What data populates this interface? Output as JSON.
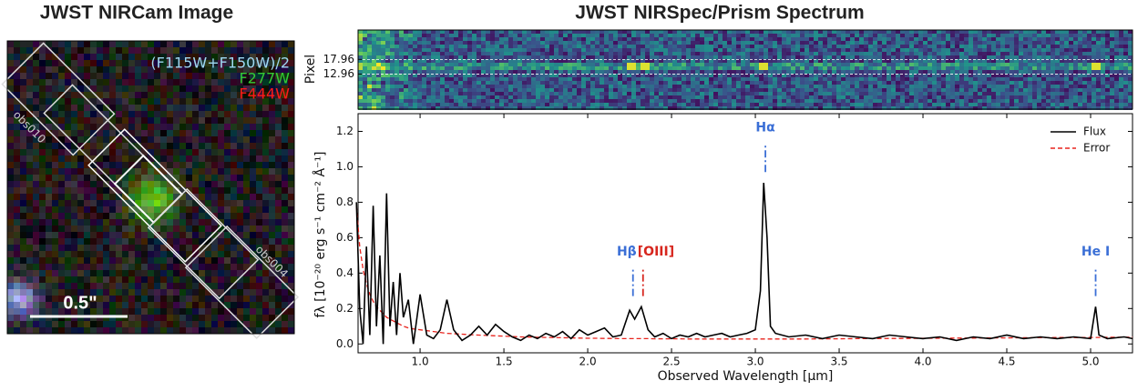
{
  "chart_data": [
    {
      "type": "image",
      "title": "JWST NIRCam Image",
      "bands": [
        {
          "name": "(F115W+F150W)/2",
          "color": "#9fd8f2"
        },
        {
          "name": "F277W",
          "color": "#33cc33"
        },
        {
          "name": "F444W",
          "color": "#ff1a1a"
        }
      ],
      "slit_labels": [
        "obs010",
        "obs004"
      ],
      "scale_bar": "0.5\""
    },
    {
      "type": "line",
      "title": "JWST NIRSpec/Prism Spectrum",
      "inset_ylabel": "Pixel",
      "inset_ylim": [
        1,
        28
      ],
      "inset_yticks": [
        17.96,
        12.96
      ],
      "xlabel": "Observed Wavelength [μm]",
      "ylabel": "fλ [10⁻²⁰ erg s⁻¹ cm⁻² Å⁻¹]",
      "xlim": [
        0.63,
        5.25
      ],
      "ylim": [
        -0.05,
        1.3
      ],
      "xticks": [
        {
          "value": 1,
          "label": "1.0"
        },
        1.5,
        {
          "value": 2,
          "label": "2.0"
        },
        2.5,
        {
          "value": 3,
          "label": "3.0"
        },
        3.5,
        {
          "value": 4,
          "label": "4.0"
        },
        4.5,
        {
          "value": 5,
          "label": "5.0"
        }
      ],
      "yticks": [
        {
          "value": 0,
          "label": "0.0"
        },
        0.2,
        0.4,
        0.6,
        0.8,
        {
          "value": 1,
          "label": "1.0"
        },
        1.2
      ],
      "legend": "upper right",
      "x": [
        0.62,
        0.64,
        0.66,
        0.68,
        0.7,
        0.72,
        0.74,
        0.76,
        0.78,
        0.8,
        0.82,
        0.84,
        0.86,
        0.88,
        0.9,
        0.93,
        0.96,
        1.0,
        1.04,
        1.08,
        1.12,
        1.16,
        1.2,
        1.25,
        1.3,
        1.35,
        1.4,
        1.45,
        1.5,
        1.55,
        1.6,
        1.65,
        1.7,
        1.75,
        1.8,
        1.85,
        1.9,
        1.95,
        2.0,
        2.05,
        2.1,
        2.15,
        2.2,
        2.25,
        2.28,
        2.32,
        2.36,
        2.4,
        2.45,
        2.5,
        2.55,
        2.6,
        2.65,
        2.7,
        2.75,
        2.8,
        2.85,
        2.9,
        2.95,
        3.0,
        3.03,
        3.05,
        3.07,
        3.09,
        3.12,
        3.2,
        3.3,
        3.4,
        3.5,
        3.6,
        3.7,
        3.8,
        3.9,
        4.0,
        4.1,
        4.2,
        4.3,
        4.4,
        4.5,
        4.6,
        4.7,
        4.8,
        4.9,
        5.0,
        5.03,
        5.05,
        5.1,
        5.2,
        5.25
      ],
      "series": [
        {
          "name": "Flux",
          "color": "#000000",
          "style": "solid",
          "values": [
            0.8,
            0.2,
            0.0,
            0.55,
            0.05,
            0.78,
            0.1,
            0.5,
            0.0,
            0.85,
            0.1,
            0.35,
            0.05,
            0.4,
            0.15,
            0.25,
            0.0,
            0.28,
            0.05,
            0.03,
            0.08,
            0.25,
            0.08,
            0.02,
            0.05,
            0.1,
            0.05,
            0.11,
            0.07,
            0.04,
            0.02,
            0.05,
            0.03,
            0.06,
            0.04,
            0.07,
            0.03,
            0.08,
            0.05,
            0.07,
            0.09,
            0.04,
            0.05,
            0.19,
            0.14,
            0.21,
            0.08,
            0.04,
            0.06,
            0.03,
            0.05,
            0.04,
            0.06,
            0.04,
            0.05,
            0.06,
            0.04,
            0.05,
            0.06,
            0.08,
            0.3,
            0.91,
            0.6,
            0.1,
            0.06,
            0.04,
            0.05,
            0.03,
            0.05,
            0.04,
            0.03,
            0.05,
            0.04,
            0.03,
            0.04,
            0.02,
            0.04,
            0.03,
            0.05,
            0.03,
            0.04,
            0.03,
            0.04,
            0.03,
            0.21,
            0.05,
            0.03,
            0.04,
            0.03
          ]
        },
        {
          "name": "Error",
          "color": "#e8231d",
          "style": "dashed",
          "values": [
            0.78,
            0.55,
            0.42,
            0.34,
            0.28,
            0.24,
            0.21,
            0.19,
            0.17,
            0.15,
            0.14,
            0.13,
            0.12,
            0.11,
            0.1,
            0.09,
            0.085,
            0.08,
            0.075,
            0.07,
            0.065,
            0.06,
            0.058,
            0.055,
            0.052,
            0.05,
            0.048,
            0.046,
            0.044,
            0.042,
            0.04,
            0.039,
            0.038,
            0.037,
            0.036,
            0.035,
            0.034,
            0.033,
            0.032,
            0.032,
            0.031,
            0.031,
            0.03,
            0.03,
            0.03,
            0.03,
            0.03,
            0.029,
            0.029,
            0.029,
            0.029,
            0.028,
            0.028,
            0.028,
            0.028,
            0.028,
            0.028,
            0.028,
            0.028,
            0.028,
            0.028,
            0.028,
            0.028,
            0.028,
            0.028,
            0.028,
            0.028,
            0.029,
            0.029,
            0.03,
            0.03,
            0.031,
            0.031,
            0.032,
            0.032,
            0.033,
            0.033,
            0.034,
            0.034,
            0.035,
            0.035,
            0.036,
            0.036,
            0.037,
            0.037,
            0.037,
            0.038,
            0.038,
            0.039
          ]
        }
      ],
      "annotations": [
        {
          "text": "Hβ",
          "x": 2.27,
          "color": "#3b6fd6"
        },
        {
          "text": "[OIII]",
          "x": 2.33,
          "color": "#d7261e"
        },
        {
          "text": "Hα",
          "x": 3.06,
          "color": "#3b6fd6"
        },
        {
          "text": "He I",
          "x": 5.03,
          "color": "#3b6fd6"
        }
      ]
    }
  ]
}
